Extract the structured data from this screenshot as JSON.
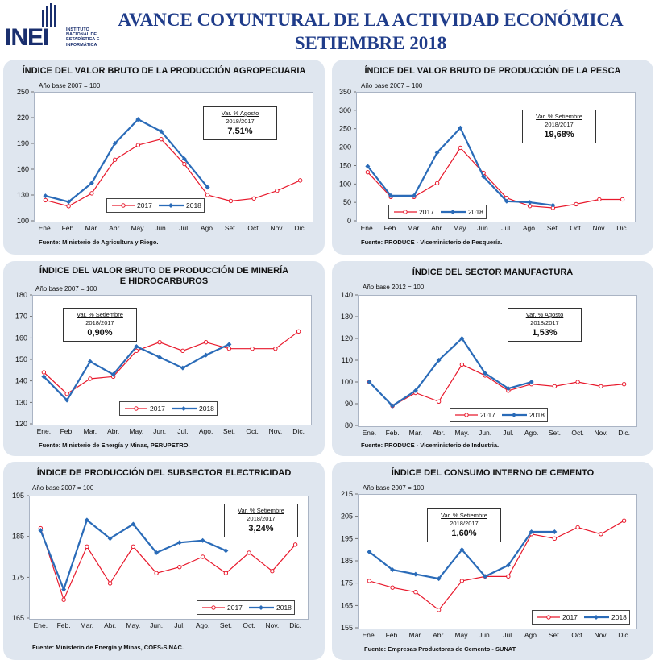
{
  "header": {
    "logo_text": "INEI",
    "logo_sub": "INSTITUTO\nNACIONAL DE\nESTADÍSTICA E\nINFORMÁTICA",
    "title_line1": "AVANCE COYUNTURAL DE LA ACTIVIDAD ECONÓMICA",
    "title_line2": "SETIEMBRE 2018"
  },
  "colors": {
    "s2017": "#e8192c",
    "s2018": "#2a6bb8",
    "title": "#1f3c8a",
    "panel_bg": "#dfe6ef"
  },
  "months": [
    "Ene.",
    "Feb.",
    "Mar.",
    "Abr.",
    "May.",
    "Jun.",
    "Jul.",
    "Ago.",
    "Set.",
    "Oct.",
    "Nov.",
    "Dic."
  ],
  "chart_data": [
    {
      "type": "line",
      "title": "ÍNDICE DEL VALOR BRUTO DE LA PRODUCCIÓN AGROPECUARIA",
      "base": "Año base  2007  =  100",
      "fuente": "Fuente: Ministerio de Agricultura y Riego.",
      "var_label": "Var. % Agosto",
      "var_years": "2018/2017",
      "var_value": "7,51%",
      "ylim": [
        100,
        250
      ],
      "yticks": [
        "100",
        "130",
        "160",
        "190",
        "220",
        "250"
      ],
      "series": [
        {
          "name": "2017",
          "values": [
            124,
            117,
            132,
            171,
            188,
            195,
            166,
            130,
            123,
            126,
            135,
            147
          ]
        },
        {
          "name": "2018",
          "values": [
            129,
            122,
            144,
            190,
            218,
            204,
            172,
            139
          ]
        }
      ]
    },
    {
      "type": "line",
      "title": "ÍNDICE DEL VALOR BRUTO DE PRODUCCIÓN DE LA PESCA",
      "base": "Año base  2007  =  100",
      "fuente": "Fuente:  PRODUCE - Viceministerio de Pesquería.",
      "var_label": "Var. % Setiembre",
      "var_years": "2018/2017",
      "var_value": "19,68%",
      "ylim": [
        0,
        350
      ],
      "yticks": [
        "0",
        "50",
        "100",
        "150",
        "200",
        "250",
        "300",
        "350"
      ],
      "series": [
        {
          "name": "2017",
          "values": [
            132,
            65,
            65,
            102,
            198,
            130,
            62,
            40,
            35,
            45,
            58,
            58
          ]
        },
        {
          "name": "2018",
          "values": [
            148,
            68,
            68,
            185,
            252,
            120,
            53,
            50,
            42
          ]
        }
      ]
    },
    {
      "type": "line",
      "title": "ÍNDICE DEL VALOR BRUTO DE PRODUCCIÓN DE MINERÍA\nE HIDROCARBUROS",
      "base": "Año base  2007  =  100",
      "fuente": "Fuente: Ministerio de Energía y Minas, PERUPETRO.",
      "var_label": "Var. % Setiembre",
      "var_years": "2018/2017",
      "var_value": "0,90%",
      "ylim": [
        120,
        180
      ],
      "yticks": [
        "120",
        "130",
        "140",
        "150",
        "160",
        "170",
        "180"
      ],
      "series": [
        {
          "name": "2017",
          "values": [
            144,
            134,
            141,
            142,
            154,
            158,
            154,
            158,
            155,
            155,
            155,
            163
          ]
        },
        {
          "name": "2018",
          "values": [
            142,
            131,
            149,
            143,
            156,
            151,
            146,
            152,
            157
          ]
        }
      ]
    },
    {
      "type": "line",
      "title": "ÍNDICE DEL SECTOR MANUFACTURA",
      "base": "Año base  2012  =  100",
      "fuente": "Fuente: PRODUCE - Viceministerio de Industria.",
      "var_label": "Var. % Agosto",
      "var_years": "2018/2017",
      "var_value": "1,53%",
      "ylim": [
        80,
        140
      ],
      "yticks": [
        "80",
        "90",
        "100",
        "110",
        "120",
        "130",
        "140"
      ],
      "series": [
        {
          "name": "2017",
          "values": [
            100,
            89,
            95,
            91,
            108,
            103,
            96,
            99,
            98,
            100,
            98,
            99
          ]
        },
        {
          "name": "2018",
          "values": [
            100,
            89,
            96,
            110,
            120,
            104,
            97,
            100
          ]
        }
      ]
    },
    {
      "type": "line",
      "title": "ÍNDICE DE PRODUCCIÓN DEL SUBSECTOR ELECTRICIDAD",
      "base": "Año base  2007  =  100",
      "fuente": "Fuente: Ministerio de Energía y Minas, COES-SINAC.",
      "var_label": "Var. % Setiembre",
      "var_years": "2018/2017",
      "var_value": "3,24%",
      "ylim": [
        165,
        195
      ],
      "yticks": [
        "165",
        "175",
        "185",
        "195"
      ],
      "series": [
        {
          "name": "2017",
          "values": [
            187,
            169.5,
            182.5,
            173.5,
            182.5,
            176,
            177.5,
            180,
            176,
            181,
            176.5,
            183
          ]
        },
        {
          "name": "2018",
          "values": [
            186.5,
            172,
            189,
            184.5,
            188,
            181,
            183.5,
            184,
            181.5
          ]
        }
      ]
    },
    {
      "type": "line",
      "title": "ÍNDICE DEL CONSUMO INTERNO DE CEMENTO",
      "base": "Año base  2007  =  100",
      "fuente": "Fuente: Empresas Productoras de Cemento - SUNAT",
      "var_label": "Var. %  Setiembre",
      "var_years": "2018/2017",
      "var_value": "1,60%",
      "ylim": [
        155,
        215
      ],
      "yticks": [
        "155",
        "165",
        "175",
        "185",
        "195",
        "205",
        "215"
      ],
      "series": [
        {
          "name": "2017",
          "values": [
            176,
            173,
            171,
            163,
            176,
            178,
            178,
            197,
            195,
            200,
            197,
            203
          ]
        },
        {
          "name": "2018",
          "values": [
            189,
            181,
            179,
            177,
            190,
            178,
            183,
            198,
            198
          ]
        }
      ]
    }
  ]
}
